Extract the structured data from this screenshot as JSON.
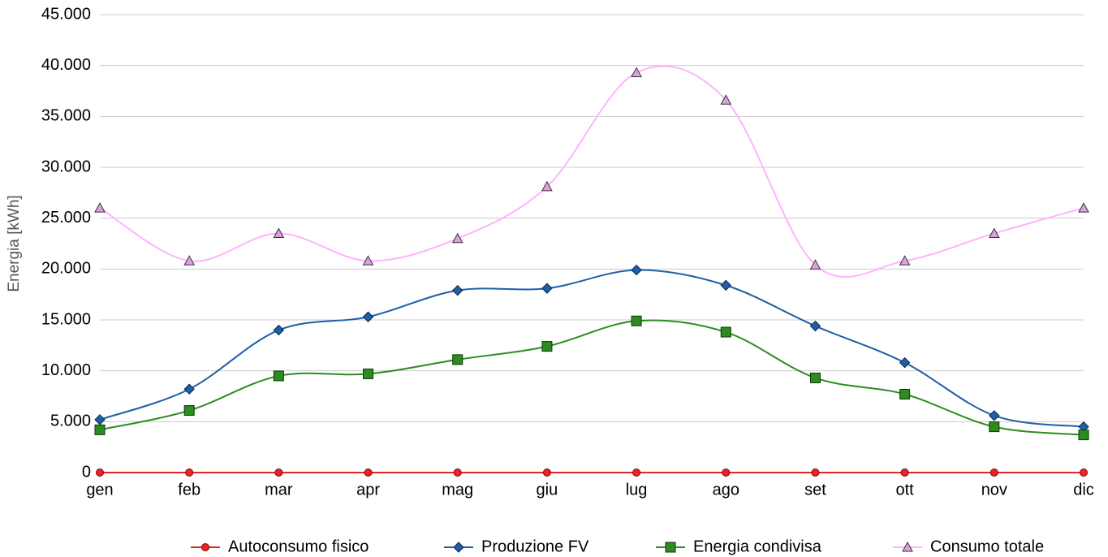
{
  "chart_data": {
    "type": "line",
    "y_label": "Energia [kWh]",
    "categories": [
      "gen",
      "feb",
      "mar",
      "apr",
      "mag",
      "giu",
      "lug",
      "ago",
      "set",
      "ott",
      "nov",
      "dic"
    ],
    "ylim": [
      0,
      45000
    ],
    "yticks": [
      0,
      {
        "value": 5000,
        "label": "5.000"
      },
      {
        "value": 10000,
        "label": "10.000"
      },
      {
        "value": 15000,
        "label": "15.000"
      },
      {
        "value": 20000,
        "label": "20.000"
      },
      {
        "value": 25000,
        "label": "25.000"
      },
      {
        "value": 30000,
        "label": "30.000"
      },
      {
        "value": 35000,
        "label": "35.000"
      },
      {
        "value": 40000,
        "label": "40.000"
      },
      {
        "value": 45000,
        "label": "45.000"
      }
    ],
    "grid": true,
    "smooth": true,
    "legend": "bottom",
    "series": [
      {
        "name": "Autoconsumo fisico",
        "color": "#e3262a",
        "marker": "circle",
        "values": [
          0,
          0,
          0,
          0,
          0,
          0,
          0,
          0,
          0,
          0,
          0,
          0
        ]
      },
      {
        "name": "Produzione FV",
        "color": "#1f5ea8",
        "marker": "diamond",
        "values": [
          5200,
          8200,
          14000,
          15300,
          17900,
          18100,
          19900,
          18400,
          14400,
          10800,
          5600,
          4500
        ]
      },
      {
        "name": "Energia condivisa",
        "color": "#2e8b22",
        "marker": "square",
        "values": [
          4200,
          6100,
          9500,
          9700,
          11100,
          12400,
          14900,
          13800,
          9300,
          7700,
          4500,
          3700
        ]
      },
      {
        "name": "Consumo totale",
        "color": "#ffb3ff",
        "marker": "triangle",
        "values": [
          26000,
          20800,
          23500,
          20800,
          23000,
          28100,
          39300,
          36600,
          20400,
          20800,
          23500,
          26000
        ]
      }
    ]
  }
}
